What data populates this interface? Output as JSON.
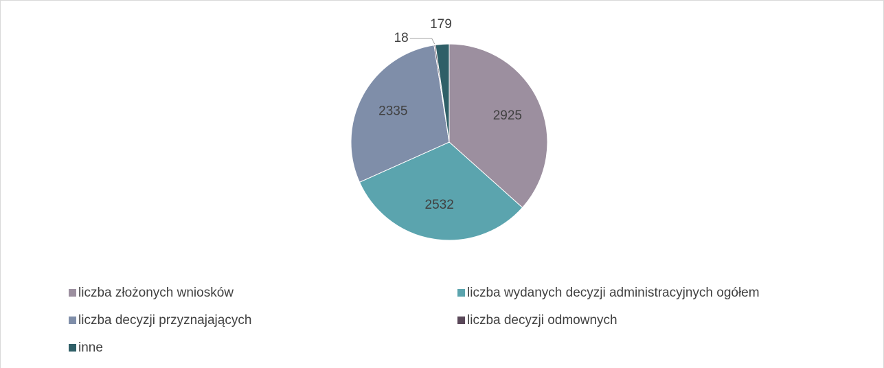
{
  "chart_data": {
    "type": "pie",
    "categories": [
      "liczba złożonych wniosków",
      "liczba wydanych decyzji administracyjnych ogółem",
      "liczba decyzji przyznajających",
      "liczba decyzji odmownych",
      "inne"
    ],
    "values": [
      2925,
      2532,
      2335,
      18,
      179
    ],
    "colors": [
      "#9c8f9f",
      "#5ba4ae",
      "#7f8ea9",
      "#5a4859",
      "#2f5f67"
    ],
    "legend": "bottom"
  }
}
